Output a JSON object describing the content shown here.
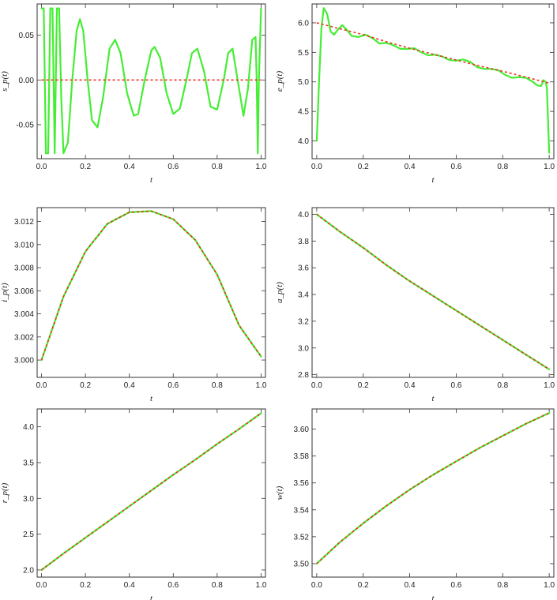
{
  "colors": {
    "numerical": "#44ee33",
    "analytical": "#ee3322",
    "frame": "#333333"
  },
  "chart_data": [
    {
      "id": "sp",
      "type": "line",
      "xlabel": "t",
      "ylabel": "s_p(t)",
      "xlim": [
        -0.02,
        1.02
      ],
      "ylim": [
        -0.088,
        0.085
      ],
      "xticks": [
        "0.0",
        "0.2",
        "0.4",
        "0.6",
        "0.8",
        "1.0"
      ],
      "yticks": [
        "0.05",
        "0.00",
        "-0.05"
      ],
      "ytick_values": [
        0.05,
        0.0,
        -0.05
      ],
      "series": [
        {
          "style": "solid-green",
          "x": [
            0.0,
            0.01,
            0.02,
            0.03,
            0.04,
            0.05,
            0.06,
            0.07,
            0.08,
            0.09,
            0.1,
            0.12,
            0.14,
            0.16,
            0.175,
            0.19,
            0.21,
            0.23,
            0.255,
            0.28,
            0.31,
            0.335,
            0.36,
            0.39,
            0.42,
            0.44,
            0.47,
            0.5,
            0.515,
            0.54,
            0.57,
            0.6,
            0.63,
            0.66,
            0.685,
            0.71,
            0.74,
            0.77,
            0.8,
            0.83,
            0.85,
            0.87,
            0.9,
            0.92,
            0.94,
            0.96,
            0.975,
            0.98,
            0.985,
            0.99,
            1.0
          ],
          "values": [
            0.08,
            0.08,
            -0.082,
            -0.082,
            0.08,
            0.08,
            -0.082,
            0.08,
            0.08,
            -0.02,
            -0.082,
            -0.07,
            0.0,
            0.055,
            0.068,
            0.055,
            0.0,
            -0.045,
            -0.053,
            -0.02,
            0.035,
            0.045,
            0.03,
            -0.015,
            -0.04,
            -0.038,
            0.0,
            0.033,
            0.037,
            0.025,
            -0.015,
            -0.038,
            -0.032,
            0.0,
            0.03,
            0.035,
            0.01,
            -0.03,
            -0.033,
            0.0,
            0.03,
            0.035,
            -0.01,
            -0.04,
            -0.01,
            0.045,
            0.048,
            0.0,
            -0.082,
            0.0,
            0.08
          ]
        },
        {
          "style": "dashed-red",
          "x": [
            0.0,
            1.0
          ],
          "values": [
            0.0,
            0.0
          ]
        }
      ]
    },
    {
      "id": "ep",
      "type": "line",
      "xlabel": "t",
      "ylabel": "e_p(t)",
      "xlim": [
        -0.02,
        1.02
      ],
      "ylim": [
        3.7,
        6.32
      ],
      "xticks": [
        "0.0",
        "0.2",
        "0.4",
        "0.6",
        "0.8",
        "1.0"
      ],
      "yticks": [
        "6.0",
        "5.5",
        "5.0",
        "4.5",
        "4.0"
      ],
      "ytick_values": [
        6.0,
        5.5,
        5.0,
        4.5,
        4.0
      ],
      "series": [
        {
          "style": "solid-green",
          "x": [
            0.0,
            0.01,
            0.02,
            0.03,
            0.045,
            0.06,
            0.075,
            0.09,
            0.11,
            0.13,
            0.15,
            0.18,
            0.21,
            0.24,
            0.27,
            0.3,
            0.33,
            0.36,
            0.39,
            0.42,
            0.45,
            0.48,
            0.51,
            0.54,
            0.57,
            0.6,
            0.63,
            0.66,
            0.69,
            0.72,
            0.75,
            0.78,
            0.81,
            0.84,
            0.87,
            0.9,
            0.93,
            0.95,
            0.965,
            0.975,
            0.985,
            0.99,
            1.0
          ],
          "values": [
            4.0,
            5.0,
            5.9,
            6.25,
            6.15,
            5.85,
            5.8,
            5.88,
            5.96,
            5.88,
            5.78,
            5.76,
            5.8,
            5.74,
            5.65,
            5.66,
            5.62,
            5.56,
            5.56,
            5.57,
            5.5,
            5.45,
            5.46,
            5.43,
            5.37,
            5.36,
            5.38,
            5.34,
            5.25,
            5.22,
            5.22,
            5.2,
            5.12,
            5.07,
            5.08,
            5.07,
            5.0,
            4.94,
            4.93,
            5.03,
            5.0,
            4.9,
            3.8
          ]
        },
        {
          "style": "dashed-red",
          "x": [
            0.0,
            0.1,
            0.2,
            0.3,
            0.4,
            0.5,
            0.6,
            0.7,
            0.8,
            0.9,
            1.0
          ],
          "values": [
            6.0,
            5.9,
            5.8,
            5.68,
            5.57,
            5.47,
            5.37,
            5.27,
            5.18,
            5.08,
            4.98
          ]
        }
      ]
    },
    {
      "id": "ip",
      "type": "line",
      "xlabel": "t",
      "ylabel": "i_p(t)",
      "xlim": [
        -0.02,
        1.02
      ],
      "ylim": [
        2.9985,
        3.0132
      ],
      "xticks": [
        "0.0",
        "0.2",
        "0.4",
        "0.6",
        "0.8",
        "1.0"
      ],
      "yticks": [
        "3.012",
        "3.010",
        "3.008",
        "3.006",
        "3.004",
        "3.002",
        "3.000"
      ],
      "ytick_values": [
        3.012,
        3.01,
        3.008,
        3.006,
        3.004,
        3.002,
        3.0
      ],
      "series": [
        {
          "style": "solid-green",
          "x": [
            0.0,
            0.1,
            0.2,
            0.3,
            0.4,
            0.5,
            0.6,
            0.7,
            0.8,
            0.9,
            1.0
          ],
          "values": [
            3.0,
            3.0055,
            3.0094,
            3.0118,
            3.0128,
            3.0129,
            3.0122,
            3.0104,
            3.0074,
            3.003,
            3.0003
          ]
        },
        {
          "style": "dashed-red",
          "x": [
            0.0,
            0.1,
            0.2,
            0.3,
            0.4,
            0.5,
            0.6,
            0.7,
            0.8,
            0.9,
            1.0
          ],
          "values": [
            3.0,
            3.0055,
            3.0094,
            3.0118,
            3.0128,
            3.0129,
            3.0122,
            3.0104,
            3.0074,
            3.003,
            3.0003
          ]
        }
      ]
    },
    {
      "id": "ap",
      "type": "line",
      "xlabel": "t",
      "ylabel": "a_p(t)",
      "xlim": [
        -0.02,
        1.02
      ],
      "ylim": [
        2.78,
        4.05
      ],
      "xticks": [
        "0.0",
        "0.2",
        "0.4",
        "0.6",
        "0.8",
        "1.0"
      ],
      "yticks": [
        "4.0",
        "3.8",
        "3.6",
        "3.4",
        "3.2",
        "3.0",
        "2.8"
      ],
      "ytick_values": [
        4.0,
        3.8,
        3.6,
        3.4,
        3.2,
        3.0,
        2.8
      ],
      "series": [
        {
          "style": "solid-green",
          "x": [
            0.0,
            0.1,
            0.2,
            0.3,
            0.4,
            0.5,
            0.6,
            0.7,
            0.8,
            0.9,
            1.0
          ],
          "values": [
            4.0,
            3.87,
            3.75,
            3.62,
            3.5,
            3.39,
            3.28,
            3.17,
            3.06,
            2.95,
            2.84
          ]
        },
        {
          "style": "dashed-red",
          "x": [
            0.0,
            0.1,
            0.2,
            0.3,
            0.4,
            0.5,
            0.6,
            0.7,
            0.8,
            0.9,
            1.0
          ],
          "values": [
            4.0,
            3.87,
            3.75,
            3.62,
            3.5,
            3.39,
            3.28,
            3.17,
            3.06,
            2.95,
            2.84
          ]
        }
      ]
    },
    {
      "id": "rp",
      "type": "line",
      "xlabel": "t",
      "ylabel": "r_p(t)",
      "xlim": [
        -0.02,
        1.02
      ],
      "ylim": [
        1.9,
        4.25
      ],
      "xticks": [
        "0.0",
        "0.2",
        "0.4",
        "0.6",
        "0.8",
        "1.0"
      ],
      "yticks": [
        "4.0",
        "3.5",
        "3.0",
        "2.5",
        "2.0"
      ],
      "ytick_values": [
        4.0,
        3.5,
        3.0,
        2.5,
        2.0
      ],
      "series": [
        {
          "style": "solid-green",
          "x": [
            0.0,
            0.1,
            0.2,
            0.3,
            0.4,
            0.5,
            0.6,
            0.7,
            0.8,
            0.9,
            1.0
          ],
          "values": [
            2.0,
            2.23,
            2.45,
            2.67,
            2.89,
            3.11,
            3.33,
            3.54,
            3.76,
            3.97,
            4.19
          ]
        },
        {
          "style": "dashed-red",
          "x": [
            0.0,
            0.1,
            0.2,
            0.3,
            0.4,
            0.5,
            0.6,
            0.7,
            0.8,
            0.9,
            1.0
          ],
          "values": [
            2.0,
            2.23,
            2.45,
            2.67,
            2.89,
            3.11,
            3.33,
            3.54,
            3.76,
            3.97,
            4.19
          ]
        }
      ]
    },
    {
      "id": "w",
      "type": "line",
      "xlabel": "t",
      "ylabel": "w(t)",
      "xlim": [
        -0.02,
        1.02
      ],
      "ylim": [
        3.49,
        3.615
      ],
      "xticks": [
        "0.0",
        "0.2",
        "0.4",
        "0.6",
        "0.8",
        "1.0"
      ],
      "yticks": [
        "3.60",
        "3.58",
        "3.56",
        "3.54",
        "3.52",
        "3.50"
      ],
      "ytick_values": [
        3.6,
        3.58,
        3.56,
        3.54,
        3.52,
        3.5
      ],
      "series": [
        {
          "style": "solid-green",
          "x": [
            0.0,
            0.1,
            0.2,
            0.3,
            0.4,
            0.5,
            0.6,
            0.7,
            0.8,
            0.9,
            1.0
          ],
          "values": [
            3.5,
            3.516,
            3.53,
            3.543,
            3.555,
            3.566,
            3.576,
            3.586,
            3.595,
            3.604,
            3.612
          ]
        },
        {
          "style": "dashed-red",
          "x": [
            0.0,
            0.1,
            0.2,
            0.3,
            0.4,
            0.5,
            0.6,
            0.7,
            0.8,
            0.9,
            1.0
          ],
          "values": [
            3.5,
            3.516,
            3.53,
            3.543,
            3.555,
            3.566,
            3.576,
            3.586,
            3.595,
            3.604,
            3.612
          ]
        }
      ]
    }
  ]
}
